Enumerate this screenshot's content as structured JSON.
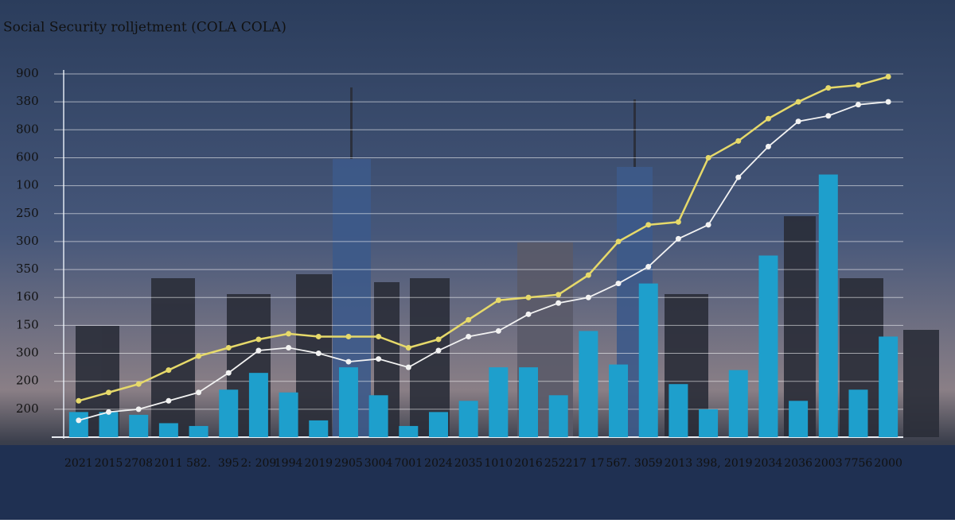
{
  "chart_data": {
    "type": "bar_line",
    "title": "Social Security rolljetment  (COLA COLA)",
    "categories": [
      "2021",
      "2015",
      "2708",
      "2011",
      "582.",
      "395",
      "2: 209",
      "1994",
      "2019",
      "2905",
      "3004",
      "7001",
      "2024",
      "2035",
      "1010",
      "2016",
      "2522",
      "17 17",
      "567.",
      "3059",
      "2013",
      "398,",
      "2019",
      "2034",
      "2036",
      "2003",
      "7756",
      "2000"
    ],
    "bars": {
      "color": "#1e9fcc",
      "values": [
        0.9,
        0.9,
        0.8,
        0.5,
        0.4,
        1.7,
        2.3,
        1.6,
        0.6,
        2.5,
        1.5,
        0.4,
        0.9,
        1.3,
        2.5,
        2.5,
        1.5,
        3.8,
        2.6,
        5.5,
        1.9,
        1.0,
        2.4,
        6.5,
        1.3,
        9.4,
        1.7,
        3.6
      ]
    },
    "lines": [
      {
        "color": "#e6d96a",
        "values": [
          1.3,
          1.6,
          1.9,
          2.4,
          2.9,
          3.2,
          3.5,
          3.7,
          3.6,
          3.6,
          3.6,
          3.2,
          3.5,
          4.2,
          4.9,
          5.0,
          5.1,
          5.8,
          7.0,
          7.6,
          7.7,
          10.0,
          10.6,
          11.4,
          12.0,
          12.5,
          12.6,
          12.9
        ]
      },
      {
        "color": "#f2f2f2",
        "values": [
          0.6,
          0.9,
          1.0,
          1.3,
          1.6,
          2.3,
          3.1,
          3.2,
          3.0,
          2.7,
          2.8,
          2.5,
          3.1,
          3.6,
          3.8,
          4.4,
          4.8,
          5.0,
          5.5,
          6.1,
          7.1,
          7.6,
          9.3,
          10.4,
          11.3,
          11.5,
          11.9,
          12.0
        ]
      }
    ],
    "ylim": [
      0,
      13
    ],
    "yticks": [
      {
        "value": 1,
        "label": "200"
      },
      {
        "value": 2,
        "label": "200"
      },
      {
        "value": 3,
        "label": "300"
      },
      {
        "value": 4,
        "label": "150"
      },
      {
        "value": 5,
        "label": "160"
      },
      {
        "value": 6,
        "label": "350"
      },
      {
        "value": 7,
        "label": "300"
      },
      {
        "value": 8,
        "label": "250"
      },
      {
        "value": 9,
        "label": "100"
      },
      {
        "value": 10,
        "label": "600"
      },
      {
        "value": 11,
        "label": "800"
      },
      {
        "value": 12,
        "label": "380"
      },
      {
        "value": 13,
        "label": "900"
      }
    ],
    "grid": true
  }
}
